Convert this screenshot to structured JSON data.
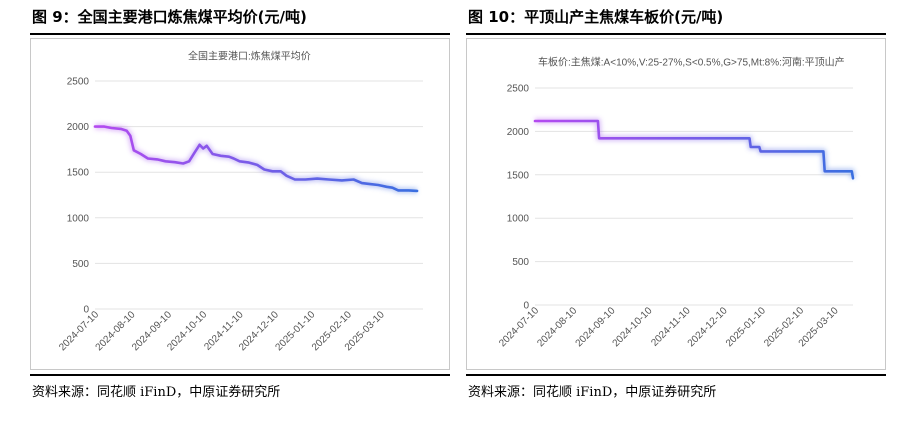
{
  "figures": [
    {
      "title": "图 9：全国主要港口炼焦煤平均价(元/吨)",
      "source": "资料来源：同花顺 iFinD，中原证券研究所"
    },
    {
      "title": "图 10：平顶山产主焦煤车板价(元/吨)",
      "source": "资料来源：同花顺 iFinD，中原证券研究所"
    }
  ],
  "colors": {
    "line_start": "#b44af0",
    "line_end": "#3a6fe0",
    "grid": "#e3e3e3"
  },
  "chart_data": [
    {
      "type": "line",
      "ylim": [
        0,
        2500
      ],
      "yticks": [
        "0",
        "500",
        "1000",
        "1500",
        "2000",
        "2500"
      ],
      "xlim": [
        "2024-07-10",
        "2025-04-15"
      ],
      "xticks": [
        "2024-07-10",
        "2024-08-10",
        "2024-09-10",
        "2024-10-10",
        "2024-11-10",
        "2024-12-10",
        "2025-01-10",
        "2025-02-10",
        "2025-03-10"
      ],
      "series": [
        {
          "name": "全国主要港口:炼焦煤平均价",
          "points": [
            [
              "2024-07-10",
              2000
            ],
            [
              "2024-07-18",
              2000
            ],
            [
              "2024-07-24",
              1985
            ],
            [
              "2024-08-01",
              1975
            ],
            [
              "2024-08-06",
              1955
            ],
            [
              "2024-08-09",
              1900
            ],
            [
              "2024-08-12",
              1740
            ],
            [
              "2024-08-18",
              1700
            ],
            [
              "2024-08-24",
              1650
            ],
            [
              "2024-09-01",
              1640
            ],
            [
              "2024-09-08",
              1620
            ],
            [
              "2024-09-16",
              1610
            ],
            [
              "2024-09-23",
              1595
            ],
            [
              "2024-09-28",
              1620
            ],
            [
              "2024-10-03",
              1720
            ],
            [
              "2024-10-07",
              1800
            ],
            [
              "2024-10-10",
              1760
            ],
            [
              "2024-10-13",
              1790
            ],
            [
              "2024-10-18",
              1700
            ],
            [
              "2024-10-25",
              1680
            ],
            [
              "2024-11-01",
              1670
            ],
            [
              "2024-11-05",
              1650
            ],
            [
              "2024-11-10",
              1620
            ],
            [
              "2024-11-18",
              1605
            ],
            [
              "2024-11-25",
              1580
            ],
            [
              "2024-12-01",
              1530
            ],
            [
              "2024-12-08",
              1510
            ],
            [
              "2024-12-15",
              1510
            ],
            [
              "2024-12-20",
              1460
            ],
            [
              "2024-12-27",
              1420
            ],
            [
              "2025-01-05",
              1420
            ],
            [
              "2025-01-15",
              1430
            ],
            [
              "2025-01-25",
              1420
            ],
            [
              "2025-02-05",
              1410
            ],
            [
              "2025-02-15",
              1420
            ],
            [
              "2025-02-22",
              1380
            ],
            [
              "2025-03-01",
              1370
            ],
            [
              "2025-03-08",
              1360
            ],
            [
              "2025-03-15",
              1340
            ],
            [
              "2025-03-20",
              1330
            ],
            [
              "2025-03-25",
              1300
            ],
            [
              "2025-04-03",
              1300
            ],
            [
              "2025-04-10",
              1295
            ]
          ]
        }
      ]
    },
    {
      "type": "line",
      "ylim": [
        0,
        2500
      ],
      "yticks": [
        "0",
        "500",
        "1000",
        "1500",
        "2000",
        "2500"
      ],
      "xlim": [
        "2024-07-10",
        "2025-03-25"
      ],
      "xticks": [
        "2024-07-10",
        "2024-08-10",
        "2024-09-10",
        "2024-10-10",
        "2024-11-10",
        "2024-12-10",
        "2025-01-10",
        "2025-02-10",
        "2025-03-10"
      ],
      "series": [
        {
          "name": "车板价:主焦煤:A<10%,V:25-27%,S<0.5%,G>75,Mt:8%:河南:平顶山产",
          "points": [
            [
              "2024-07-10",
              2120
            ],
            [
              "2024-08-30",
              2120
            ],
            [
              "2024-08-31",
              1920
            ],
            [
              "2024-12-31",
              1920
            ],
            [
              "2025-01-01",
              1820
            ],
            [
              "2025-01-08",
              1820
            ],
            [
              "2025-01-09",
              1770
            ],
            [
              "2025-03-01",
              1770
            ],
            [
              "2025-03-02",
              1540
            ],
            [
              "2025-03-24",
              1540
            ],
            [
              "2025-03-25",
              1460
            ]
          ]
        }
      ]
    }
  ]
}
